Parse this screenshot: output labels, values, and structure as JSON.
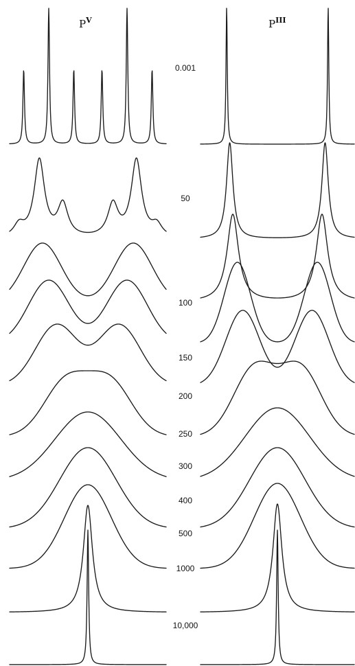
{
  "panels": [
    {
      "title": "P",
      "superscript": "V"
    },
    {
      "title": "P",
      "superscript": "III"
    }
  ],
  "rate_labels": [
    "0.001",
    "50",
    "100",
    "150",
    "200",
    "250",
    "300",
    "400",
    "500",
    "1000",
    "10,000"
  ]
}
